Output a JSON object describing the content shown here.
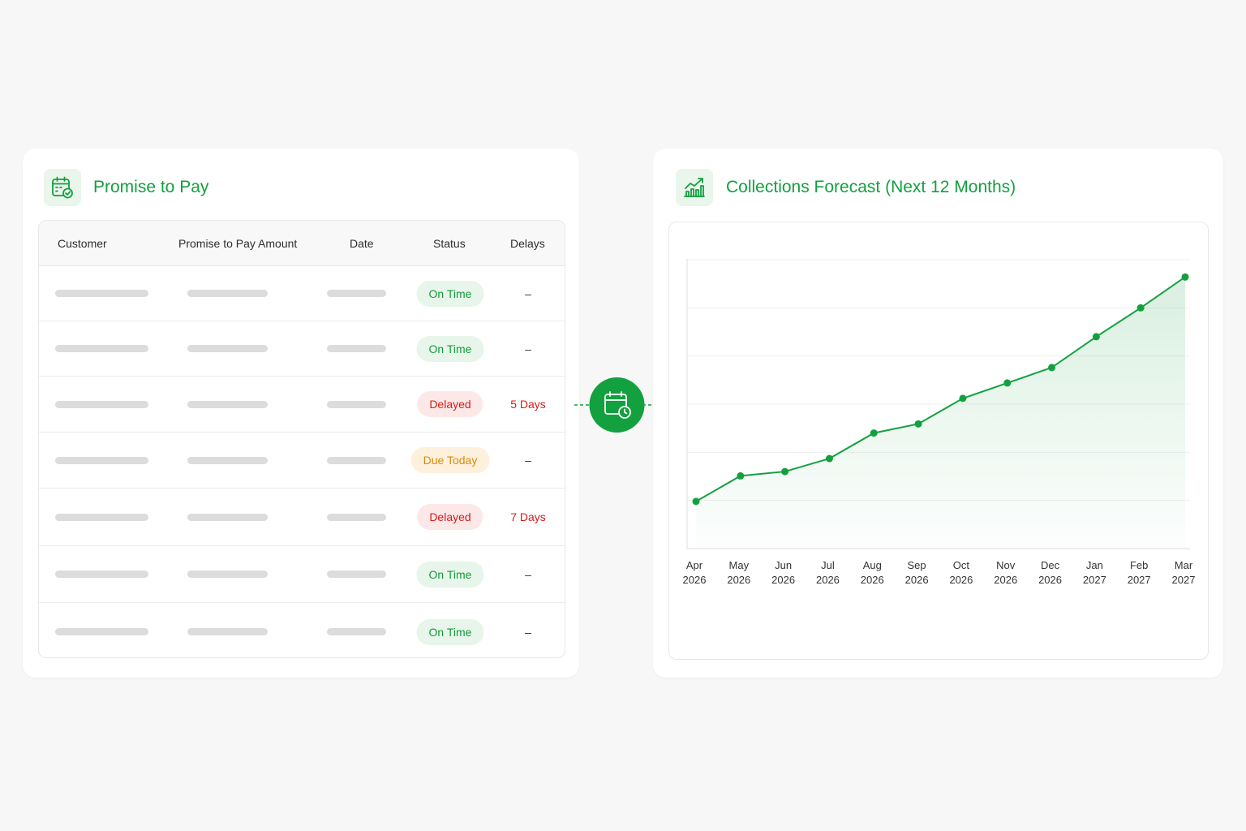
{
  "promise_to_pay": {
    "title": "Promise to Pay",
    "icon": "calendar-check-icon",
    "columns": [
      "Customer",
      "Promise to Pay Amount",
      "Date",
      "Status",
      "Delays"
    ],
    "rows": [
      {
        "status": "On Time",
        "status_type": "ontime",
        "delays": "–"
      },
      {
        "status": "On Time",
        "status_type": "ontime",
        "delays": "–"
      },
      {
        "status": "Delayed",
        "status_type": "delayed",
        "delays": "5 Days"
      },
      {
        "status": "Due Today",
        "status_type": "duetoday",
        "delays": "–"
      },
      {
        "status": "Delayed",
        "status_type": "delayed",
        "delays": "7 Days"
      },
      {
        "status": "On Time",
        "status_type": "ontime",
        "delays": "–"
      },
      {
        "status": "On Time",
        "status_type": "ontime",
        "delays": "–"
      }
    ]
  },
  "connector": {
    "icon": "calendar-clock-icon"
  },
  "forecast": {
    "title": "Collections Forecast (Next 12 Months)",
    "icon": "growth-chart-icon"
  },
  "chart_data": {
    "type": "area",
    "title": "Collections Forecast (Next 12 Months)",
    "xlabel": "",
    "ylabel": "",
    "categories": [
      [
        "Apr",
        "2026"
      ],
      [
        "May",
        "2026"
      ],
      [
        "Jun",
        "2026"
      ],
      [
        "Jul",
        "2026"
      ],
      [
        "Aug",
        "2026"
      ],
      [
        "Sep",
        "2026"
      ],
      [
        "Oct",
        "2026"
      ],
      [
        "Nov",
        "2026"
      ],
      [
        "Dec",
        "2026"
      ],
      [
        "Jan",
        "2027"
      ],
      [
        "Feb",
        "2027"
      ],
      [
        "Mar",
        "2027"
      ]
    ],
    "values": [
      0.98,
      1.51,
      1.6,
      1.87,
      2.4,
      2.59,
      3.12,
      3.44,
      3.76,
      4.4,
      5.0,
      5.64
    ],
    "ylim": [
      0,
      6
    ],
    "grid": true,
    "legend": "none",
    "color": "#13a03f"
  },
  "colors": {
    "accent": "#13a03f",
    "ontime": "#159a3c",
    "delayed": "#d61b1b",
    "due_today": "#d98a0a"
  }
}
